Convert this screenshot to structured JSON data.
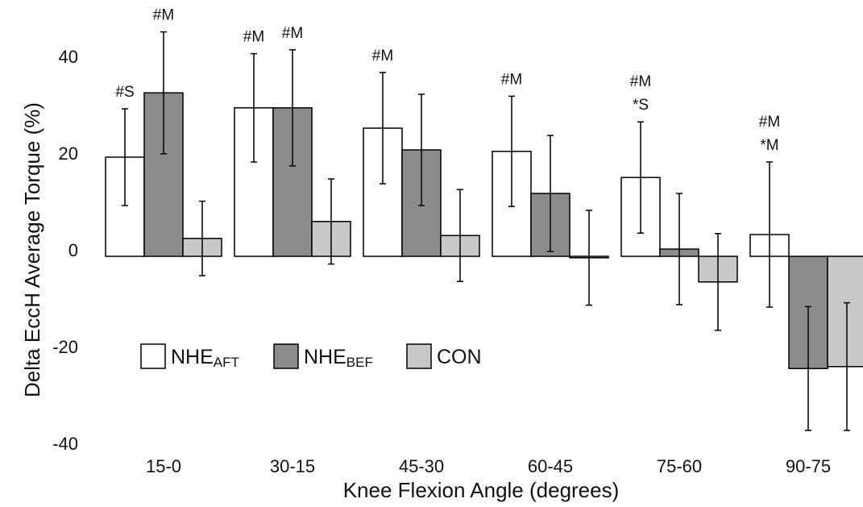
{
  "chart_data": {
    "type": "bar",
    "x_label": "Knee Flexion Angle (degrees)",
    "y_label": "Delta EccH Average Torque (%)",
    "categories": [
      "15-0",
      "30-15",
      "45-30",
      "60-45",
      "75-60",
      "90-75"
    ],
    "series": [
      {
        "name": "NHE",
        "name_sub": "AFT",
        "color": "#ffffff",
        "values": [
          20.5,
          30.7,
          26.5,
          21.7,
          16.3,
          4.5
        ],
        "errors": [
          10,
          11.2,
          11.5,
          11.4,
          11.5,
          15
        ]
      },
      {
        "name": "NHE",
        "name_sub": "BEF",
        "color": "#8c8c8c",
        "values": [
          33.8,
          30.7,
          22,
          13,
          1.5,
          -23.2
        ],
        "errors": [
          12.6,
          12,
          11.5,
          12,
          11.5,
          12.8
        ]
      },
      {
        "name": "CON",
        "color": "#c8c8c8",
        "values": [
          3.7,
          7.2,
          4.3,
          -0.3,
          -5.3,
          -22.8
        ],
        "errors": [
          7.7,
          8.8,
          9.5,
          9.8,
          10,
          13.2
        ]
      }
    ],
    "annotations": [
      {
        "category": 0,
        "series": 0,
        "lines": [
          "#S"
        ]
      },
      {
        "category": 0,
        "series": 1,
        "lines": [
          "#M"
        ]
      },
      {
        "category": 1,
        "series": 0,
        "lines": [
          "#M"
        ]
      },
      {
        "category": 1,
        "series": 1,
        "lines": [
          "#M"
        ]
      },
      {
        "category": 2,
        "series": 0,
        "lines": [
          "#M"
        ]
      },
      {
        "category": 3,
        "series": 0,
        "lines": [
          "#M"
        ]
      },
      {
        "category": 4,
        "series": 0,
        "lines": [
          "#M",
          "*S"
        ]
      },
      {
        "category": 5,
        "series": 0,
        "lines": [
          "#M",
          "*M"
        ]
      }
    ],
    "ylim": [
      -42,
      53
    ],
    "yticks": [
      -40,
      -20,
      0,
      20,
      40
    ],
    "legend": "lower left"
  }
}
